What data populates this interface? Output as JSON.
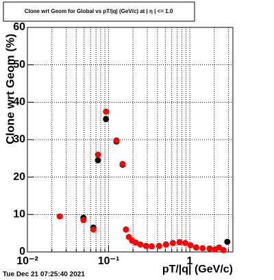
{
  "chart_data": {
    "type": "scatter",
    "title": "Clone wrt Geom for Global vs pT/|q| (GeV/c) at | η | <= 1.0",
    "x_label": "pT/|q| (GeV/c)",
    "y_label": "Clone wrt Geom (%)",
    "footer": "Tue Dec 21 07:25:40 2021",
    "log_x": true,
    "grid": true,
    "xlim": [
      0.01,
      3.4
    ],
    "ylim": [
      0,
      60
    ],
    "xticks": [
      {
        "value": 0.01,
        "label": "10⁻²"
      },
      {
        "value": 0.1,
        "label": "10⁻¹"
      },
      1
    ],
    "yticks": [
      0,
      10,
      20,
      30,
      40,
      50,
      60
    ],
    "series": [
      {
        "name": "black",
        "color": "#000000",
        "x": [
          0.049,
          0.065,
          0.074,
          0.093,
          0.125,
          0.149,
          0.164,
          0.29,
          0.51,
          0.75,
          1.2,
          1.76,
          2.9
        ],
        "values": [
          9.1,
          6.5,
          24.5,
          35.5,
          29.5,
          23.3,
          6,
          1.6,
          2,
          2.6,
          1.2,
          0.9,
          2.7
        ]
      },
      {
        "name": "red",
        "color": "#ff0000",
        "x": [
          0.025,
          0.049,
          0.065,
          0.074,
          0.093,
          0.125,
          0.149,
          0.164,
          0.178,
          0.195,
          0.216,
          0.247,
          0.29,
          0.34,
          0.42,
          0.51,
          0.62,
          0.75,
          0.88,
          1.02,
          1.2,
          1.44,
          1.76,
          2.05,
          2.3,
          2.6
        ],
        "values": [
          9.5,
          8.5,
          6.0,
          26,
          37.5,
          29.8,
          23.5,
          6,
          4,
          3,
          2.5,
          2,
          1.6,
          1.5,
          1.6,
          2,
          2.4,
          2.6,
          2.4,
          1.8,
          1.2,
          1.0,
          0.9,
          0.7,
          1.2,
          0.5
        ]
      }
    ]
  }
}
